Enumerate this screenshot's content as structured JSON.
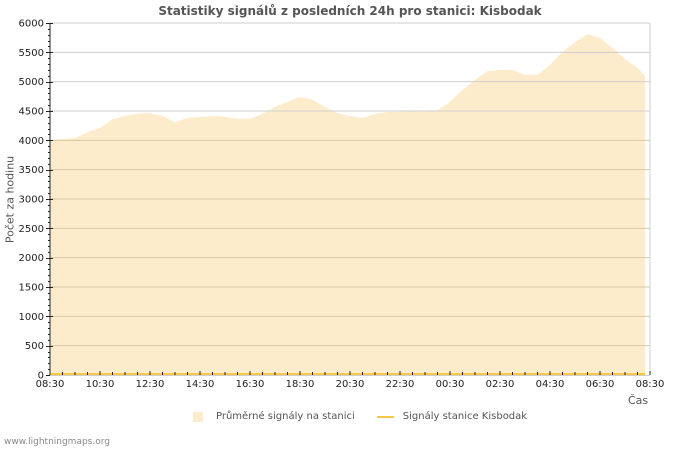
{
  "chart_data": {
    "type": "area",
    "title": "Statistiky signálů z posledních 24h pro stanici: Kisbodak",
    "xlabel": "Čas",
    "ylabel": "Počet za hodinu",
    "ylim": [
      0,
      6000
    ],
    "yticks": [
      0,
      500,
      1000,
      1500,
      2000,
      2500,
      3000,
      3500,
      4000,
      4500,
      5000,
      5500,
      6000
    ],
    "xticks": [
      "08:30",
      "10:30",
      "12:30",
      "14:30",
      "16:30",
      "18:30",
      "20:30",
      "22:30",
      "00:30",
      "02:30",
      "04:30",
      "06:30",
      "08:30"
    ],
    "grid": true,
    "legend_position": "bottom",
    "x": [
      "08:30",
      "09:00",
      "09:30",
      "10:00",
      "10:30",
      "11:00",
      "11:30",
      "12:00",
      "12:30",
      "13:00",
      "13:30",
      "14:00",
      "14:30",
      "15:00",
      "15:30",
      "16:00",
      "16:30",
      "17:00",
      "17:30",
      "18:00",
      "18:30",
      "19:00",
      "19:30",
      "20:00",
      "20:30",
      "21:00",
      "21:30",
      "22:00",
      "22:30",
      "23:00",
      "23:30",
      "00:00",
      "00:30",
      "01:00",
      "01:30",
      "02:00",
      "02:30",
      "03:00",
      "03:30",
      "04:00",
      "04:30",
      "05:00",
      "05:30",
      "06:00",
      "06:30",
      "07:00",
      "07:30",
      "08:00",
      "08:15"
    ],
    "series": [
      {
        "name": "Průměrné signály na stanici",
        "type": "area",
        "color": "#fdeccc",
        "values": [
          4000,
          4025,
          4040,
          4140,
          4210,
          4360,
          4415,
          4450,
          4465,
          4415,
          4310,
          4380,
          4400,
          4415,
          4400,
          4365,
          4365,
          4450,
          4570,
          4655,
          4740,
          4690,
          4570,
          4465,
          4415,
          4380,
          4450,
          4485,
          4485,
          4500,
          4485,
          4515,
          4655,
          4860,
          5030,
          5180,
          5200,
          5200,
          5115,
          5115,
          5285,
          5505,
          5675,
          5810,
          5745,
          5575,
          5385,
          5235,
          5095
        ]
      },
      {
        "name": "Signály stanice Kisbodak",
        "type": "line",
        "color": "#f5c84c",
        "values": [
          0,
          0,
          0,
          0,
          0,
          0,
          0,
          0,
          0,
          0,
          0,
          0,
          0,
          0,
          0,
          0,
          0,
          0,
          0,
          0,
          0,
          0,
          0,
          0,
          0,
          0,
          0,
          0,
          0,
          0,
          0,
          0,
          0,
          0,
          0,
          0,
          0,
          0,
          0,
          0,
          0,
          0,
          0,
          0,
          0,
          0,
          0,
          0,
          0
        ]
      }
    ]
  },
  "legend": {
    "area_label": "Průměrné signály na stanici",
    "line_label": "Signály stanice Kisbodak"
  },
  "footer": "www.lightningmaps.org"
}
